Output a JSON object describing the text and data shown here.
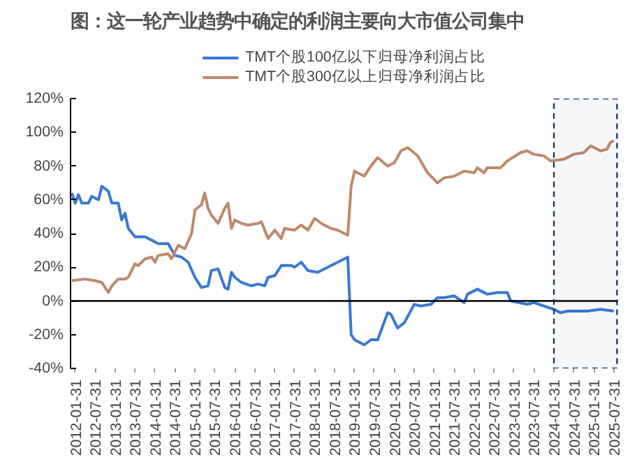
{
  "chart_data": {
    "type": "line",
    "title": "图：这一轮产业趋势中确定的利润主要向大市值公司集中",
    "xlim": [
      "2011-12-20",
      "2025-09-10"
    ],
    "xticks": [
      "2012-01-31",
      "2012-07-31",
      "2013-01-31",
      "2013-07-31",
      "2014-01-31",
      "2014-07-31",
      "2015-01-31",
      "2015-07-31",
      "2016-01-31",
      "2016-07-31",
      "2017-01-31",
      "2017-07-31",
      "2018-01-31",
      "2018-07-31",
      "2019-01-31",
      "2019-07-31",
      "2020-01-31",
      "2020-07-31",
      "2021-01-31",
      "2021-07-31",
      "2022-01-31",
      "2022-07-31",
      "2023-01-31",
      "2023-07-31",
      "2024-01-31",
      "2024-07-31",
      "2025-01-31",
      "2025-07-31"
    ],
    "ylim": [
      -40,
      120
    ],
    "yticks": [
      {
        "value": -40,
        "label": "-40%"
      },
      {
        "value": -20,
        "label": "-20%"
      },
      {
        "value": 0,
        "label": "0%"
      },
      {
        "value": 20,
        "label": "20%"
      },
      {
        "value": 40,
        "label": "40%"
      },
      {
        "value": 60,
        "label": "60%"
      },
      {
        "value": 80,
        "label": "80%"
      },
      {
        "value": 100,
        "label": "100%"
      },
      {
        "value": 120,
        "label": "120%"
      }
    ],
    "grid": false,
    "legend": "top",
    "line_style": "solid",
    "marker": "none",
    "ref_lines": [
      {
        "axis": "y",
        "value": 0,
        "color": "#000000",
        "line_style": "solid"
      }
    ],
    "bands": [
      {
        "axis": "x",
        "from": "2024-01-31",
        "to": "2025-08-31",
        "color": "#1f3864"
      }
    ],
    "series": [
      {
        "name": "TMT个股100亿以下归母净利润占比",
        "color": "#3a78d4",
        "x": [
          "2012-01",
          "2012-02",
          "2012-03",
          "2012-04",
          "2012-06",
          "2012-07",
          "2012-09",
          "2012-10",
          "2012-12",
          "2013-01",
          "2013-03",
          "2013-04",
          "2013-05",
          "2013-06",
          "2013-08",
          "2013-11",
          "2014-01",
          "2014-03",
          "2014-06",
          "2014-08",
          "2014-10",
          "2014-12",
          "2015-02",
          "2015-04",
          "2015-06",
          "2015-07",
          "2015-09",
          "2015-11",
          "2015-12",
          "2016-01",
          "2016-02",
          "2016-04",
          "2016-07",
          "2016-09",
          "2016-11",
          "2016-12",
          "2017-02",
          "2017-04",
          "2017-07",
          "2017-08",
          "2017-10",
          "2017-12",
          "2018-03",
          "2018-06",
          "2018-09",
          "2018-12",
          "2019-01",
          "2019-02",
          "2019-05",
          "2019-07",
          "2019-09",
          "2019-12",
          "2020-01",
          "2020-03",
          "2020-05",
          "2020-08",
          "2020-10",
          "2021-01",
          "2021-03",
          "2021-05",
          "2021-08",
          "2021-11",
          "2021-12",
          "2022-03",
          "2022-06",
          "2022-09",
          "2022-12",
          "2023-01",
          "2023-06",
          "2023-08",
          "2023-11",
          "2024-02",
          "2024-04",
          "2024-06",
          "2024-12",
          "2025-04",
          "2025-08"
        ],
        "values": [
          64,
          58,
          63,
          58,
          58,
          62,
          60,
          68,
          65,
          58,
          58,
          48,
          52,
          43,
          38,
          38,
          36,
          34,
          34,
          27,
          26,
          23,
          14,
          8,
          9,
          18,
          19,
          8,
          7,
          17,
          14,
          11,
          9,
          10,
          9,
          14,
          15,
          21,
          21,
          20,
          23,
          18,
          17,
          20,
          23,
          26,
          -20,
          -23,
          -26,
          -23,
          -23,
          -7,
          -8,
          -16,
          -13,
          -2,
          -3,
          -2,
          2,
          2,
          3,
          -1,
          4,
          7,
          4,
          5,
          5,
          0,
          -2,
          -1,
          -3,
          -5,
          -7,
          -6,
          -6,
          -5,
          -6
        ]
      },
      {
        "name": "TMT个股300亿以上归母净利润占比",
        "color": "#c0896a",
        "x": [
          "2012-01",
          "2012-05",
          "2012-08",
          "2012-10",
          "2012-12",
          "2013-01",
          "2013-03",
          "2013-05",
          "2013-06",
          "2013-08",
          "2013-09",
          "2013-11",
          "2014-01",
          "2014-02",
          "2014-03",
          "2014-06",
          "2014-07",
          "2014-09",
          "2014-11",
          "2015-01",
          "2015-02",
          "2015-04",
          "2015-05",
          "2015-06",
          "2015-07",
          "2015-09",
          "2015-11",
          "2015-12",
          "2016-01",
          "2016-02",
          "2016-04",
          "2016-06",
          "2016-09",
          "2016-10",
          "2016-12",
          "2017-02",
          "2017-04",
          "2017-05",
          "2017-08",
          "2017-10",
          "2017-12",
          "2018-02",
          "2018-04",
          "2018-07",
          "2018-09",
          "2018-12",
          "2019-01",
          "2019-02",
          "2019-05",
          "2019-07",
          "2019-09",
          "2019-12",
          "2020-02",
          "2020-04",
          "2020-06",
          "2020-09",
          "2020-12",
          "2021-03",
          "2021-05",
          "2021-08",
          "2021-11",
          "2022-02",
          "2022-03",
          "2022-05",
          "2022-06",
          "2022-10",
          "2022-12",
          "2023-04",
          "2023-06",
          "2023-08",
          "2023-11",
          "2024-01",
          "2024-05",
          "2024-08",
          "2024-11",
          "2025-01",
          "2025-04",
          "2025-06",
          "2025-07",
          "2025-08"
        ],
        "values": [
          12,
          13,
          12,
          11,
          5,
          9,
          13,
          13,
          14,
          22,
          21,
          25,
          26,
          23,
          27,
          28,
          25,
          33,
          31,
          40,
          54,
          57,
          64,
          55,
          51,
          46,
          55,
          58,
          43,
          48,
          46,
          45,
          46,
          47,
          37,
          42,
          37,
          43,
          42,
          45,
          42,
          49,
          46,
          43,
          42,
          39,
          68,
          77,
          74,
          80,
          85,
          80,
          82,
          89,
          91,
          86,
          76,
          70,
          73,
          74,
          77,
          76,
          79,
          76,
          79,
          79,
          83,
          88,
          89,
          87,
          86,
          83,
          84,
          87,
          88,
          92,
          89,
          90,
          94,
          95
        ]
      }
    ]
  }
}
